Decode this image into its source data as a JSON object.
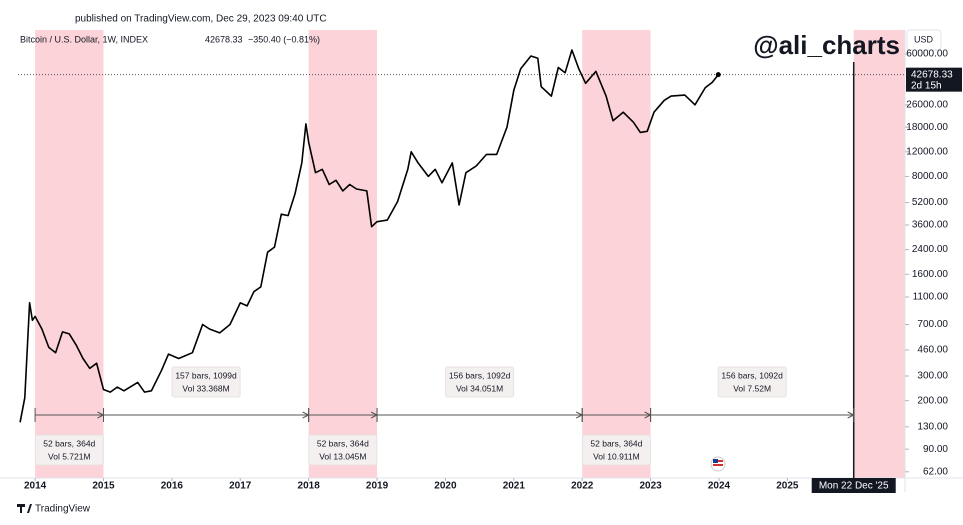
{
  "chart_data": {
    "type": "line",
    "published": "published on TradingView.com, Dec 29, 2023 09:40 UTC",
    "title": "Bitcoin / U.S. Dollar, 1W, INDEX",
    "header_price": "42678.33",
    "header_change": "−350.40 (−0.81%)",
    "watermark": "@ali_charts",
    "currency": "USD",
    "logo": "TradingView",
    "log_scale": true,
    "grid": false,
    "x": [
      2013.78,
      2013.85,
      2013.92,
      2013.96,
      2014.0,
      2014.1,
      2014.2,
      2014.3,
      2014.4,
      2014.5,
      2014.6,
      2014.7,
      2014.8,
      2014.9,
      2015.0,
      2015.1,
      2015.2,
      2015.3,
      2015.5,
      2015.6,
      2015.7,
      2015.85,
      2015.95,
      2016.1,
      2016.3,
      2016.45,
      2016.55,
      2016.7,
      2016.85,
      2017.0,
      2017.1,
      2017.2,
      2017.3,
      2017.4,
      2017.5,
      2017.6,
      2017.7,
      2017.8,
      2017.9,
      2017.96,
      2018.0,
      2018.1,
      2018.2,
      2018.3,
      2018.4,
      2018.5,
      2018.6,
      2018.7,
      2018.85,
      2018.92,
      2019.0,
      2019.15,
      2019.3,
      2019.45,
      2019.5,
      2019.6,
      2019.75,
      2019.85,
      2019.95,
      2020.1,
      2020.2,
      2020.3,
      2020.45,
      2020.6,
      2020.75,
      2020.9,
      2021.0,
      2021.1,
      2021.25,
      2021.35,
      2021.4,
      2021.55,
      2021.65,
      2021.75,
      2021.85,
      2021.95,
      2022.05,
      2022.2,
      2022.35,
      2022.45,
      2022.6,
      2022.75,
      2022.85,
      2022.95,
      2023.05,
      2023.2,
      2023.3,
      2023.5,
      2023.65,
      2023.8,
      2023.9,
      2023.99
    ],
    "series": [
      {
        "name": "Bitcoin / U.S. Dollar",
        "color": "#000000",
        "values": [
          140,
          210,
          1000,
          750,
          800,
          650,
          480,
          440,
          620,
          600,
          500,
          400,
          340,
          370,
          240,
          230,
          250,
          235,
          270,
          230,
          235,
          330,
          430,
          400,
          440,
          700,
          650,
          610,
          700,
          1000,
          950,
          1200,
          1300,
          2300,
          2500,
          4300,
          4200,
          6000,
          10000,
          19000,
          14000,
          8500,
          9000,
          7000,
          7500,
          6300,
          7000,
          6500,
          6300,
          3500,
          3800,
          3900,
          5300,
          9000,
          12000,
          10000,
          8000,
          9000,
          7200,
          10000,
          5000,
          8500,
          9500,
          11500,
          11500,
          18000,
          33000,
          47000,
          58000,
          56000,
          35000,
          30000,
          48000,
          44000,
          64000,
          47000,
          37000,
          45000,
          30000,
          20000,
          23000,
          19500,
          16500,
          16800,
          23000,
          28000,
          30000,
          30500,
          26000,
          34500,
          37500,
          42678.33
        ]
      }
    ],
    "xlim": [
      2013.75,
      2026.72
    ],
    "xticks": [
      2014,
      2015,
      2016,
      2017,
      2018,
      2019,
      2020,
      2021,
      2022,
      2023,
      2024,
      2025
    ],
    "ylim": [
      56,
      89000
    ],
    "yticks": [
      {
        "value": 62,
        "label": "62.00"
      },
      {
        "value": 90,
        "label": "90.00"
      },
      {
        "value": 130,
        "label": "130.00"
      },
      {
        "value": 200,
        "label": "200.00"
      },
      {
        "value": 300,
        "label": "300.00"
      },
      {
        "value": 460,
        "label": "460.00"
      },
      {
        "value": 700,
        "label": "700.00"
      },
      {
        "value": 1100,
        "label": "1100.00"
      },
      {
        "value": 1600,
        "label": "1600.00"
      },
      {
        "value": 2400,
        "label": "2400.00"
      },
      {
        "value": 3600,
        "label": "3600.00"
      },
      {
        "value": 5200,
        "label": "5200.00"
      },
      {
        "value": 8000,
        "label": "8000.00"
      },
      {
        "value": 12000,
        "label": "12000.00"
      },
      {
        "value": 18000,
        "label": "18000.00"
      },
      {
        "value": 26000,
        "label": "26000.00"
      },
      {
        "value": 60000,
        "label": "60000.00"
      }
    ],
    "price_label": {
      "value": 42678.33,
      "label": "42678.33",
      "countdown": "2d 15h"
    },
    "highlight_color": "#fcd3d8",
    "highlights": [
      [
        2014.0,
        2015.0
      ],
      [
        2018.0,
        2019.0
      ],
      [
        2022.0,
        2023.0
      ],
      [
        2025.97,
        2026.72
      ]
    ],
    "vline": {
      "x": 2025.97,
      "label": "Mon 22 Dec '25"
    },
    "measures": [
      {
        "from": 2014.0,
        "to": 2015.0,
        "lines": [
          "52 bars, 364d",
          "Vol 5.721M"
        ],
        "position": "below"
      },
      {
        "from": 2015.0,
        "to": 2018.0,
        "lines": [
          "157 bars, 1099d",
          "Vol 33.368M"
        ],
        "position": "above"
      },
      {
        "from": 2018.0,
        "to": 2019.0,
        "lines": [
          "52 bars, 364d",
          "Vol 13.045M"
        ],
        "position": "below"
      },
      {
        "from": 2019.0,
        "to": 2022.0,
        "lines": [
          "156 bars, 1092d",
          "Vol 34.051M"
        ],
        "position": "above"
      },
      {
        "from": 2022.0,
        "to": 2023.0,
        "lines": [
          "52 bars, 364d",
          "Vol 10.911M"
        ],
        "position": "below"
      },
      {
        "from": 2023.0,
        "to": 2025.97,
        "lines": [
          "156 bars, 1092d",
          "Vol 7.52M"
        ],
        "position": "above"
      }
    ]
  }
}
